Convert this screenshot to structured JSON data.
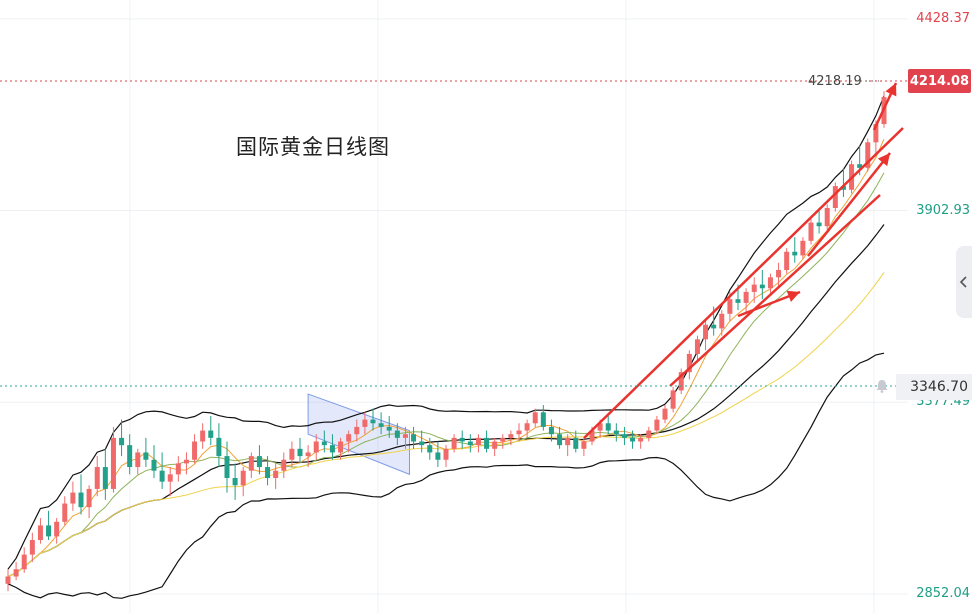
{
  "title": "国际黄金日线图",
  "price_axis": {
    "labels": [
      {
        "value": 4428.37,
        "text": "4428.37",
        "color": "#e0434e"
      },
      {
        "value": 3902.93,
        "text": "3902.93",
        "color": "#1f9e84"
      },
      {
        "value": 3377.49,
        "text": "3377.49",
        "color": "#1f9e84"
      },
      {
        "value": 2852.04,
        "text": "2852.04",
        "color": "#1f9e84"
      }
    ],
    "current_price": "4214.08",
    "reference_price": "3346.70",
    "high_label": "4218.19"
  },
  "colors": {
    "up": "#f06a6a",
    "down": "#22a08a",
    "bb": "#111111",
    "ma_short": "#f2a33a",
    "ma_mid": "#8fb35a",
    "ma_long": "#f0d24a",
    "trendline": "#e8332e",
    "channel": "#7f9be8"
  },
  "chart_data": {
    "type": "candlestick",
    "y_range": [
      2800,
      4480
    ],
    "title": "国际黄金日线图",
    "series": [
      {
        "name": "candles",
        "values": [
          [
            2880,
            2920,
            2860,
            2900
          ],
          [
            2900,
            2940,
            2890,
            2920
          ],
          [
            2920,
            2980,
            2910,
            2960
          ],
          [
            2960,
            3020,
            2940,
            3000
          ],
          [
            3000,
            3060,
            2990,
            3040
          ],
          [
            3040,
            3080,
            3000,
            3010
          ],
          [
            3010,
            3060,
            2990,
            3050
          ],
          [
            3050,
            3120,
            3040,
            3100
          ],
          [
            3100,
            3160,
            3080,
            3130
          ],
          [
            3130,
            3180,
            3070,
            3090
          ],
          [
            3090,
            3150,
            3060,
            3140
          ],
          [
            3140,
            3230,
            3120,
            3200
          ],
          [
            3200,
            3250,
            3110,
            3140
          ],
          [
            3140,
            3310,
            3130,
            3280
          ],
          [
            3280,
            3330,
            3230,
            3260
          ],
          [
            3260,
            3290,
            3180,
            3200
          ],
          [
            3200,
            3250,
            3180,
            3240
          ],
          [
            3240,
            3280,
            3200,
            3220
          ],
          [
            3220,
            3260,
            3170,
            3190
          ],
          [
            3190,
            3240,
            3140,
            3160
          ],
          [
            3160,
            3200,
            3120,
            3180
          ],
          [
            3180,
            3230,
            3160,
            3210
          ],
          [
            3210,
            3240,
            3180,
            3220
          ],
          [
            3220,
            3290,
            3210,
            3270
          ],
          [
            3270,
            3320,
            3250,
            3300
          ],
          [
            3300,
            3340,
            3260,
            3280
          ],
          [
            3280,
            3320,
            3200,
            3230
          ],
          [
            3230,
            3270,
            3130,
            3170
          ],
          [
            3170,
            3210,
            3110,
            3150
          ],
          [
            3150,
            3200,
            3120,
            3190
          ],
          [
            3190,
            3240,
            3170,
            3230
          ],
          [
            3230,
            3260,
            3180,
            3200
          ],
          [
            3200,
            3230,
            3150,
            3170
          ],
          [
            3170,
            3210,
            3140,
            3190
          ],
          [
            3190,
            3240,
            3170,
            3220
          ],
          [
            3220,
            3270,
            3200,
            3250
          ],
          [
            3250,
            3280,
            3210,
            3230
          ],
          [
            3230,
            3260,
            3200,
            3240
          ],
          [
            3240,
            3290,
            3220,
            3270
          ],
          [
            3270,
            3300,
            3240,
            3260
          ],
          [
            3260,
            3290,
            3220,
            3240
          ],
          [
            3240,
            3280,
            3220,
            3270
          ],
          [
            3270,
            3300,
            3240,
            3290
          ],
          [
            3290,
            3330,
            3270,
            3310
          ],
          [
            3310,
            3350,
            3290,
            3330
          ],
          [
            3330,
            3360,
            3300,
            3320
          ],
          [
            3320,
            3350,
            3290,
            3310
          ],
          [
            3310,
            3340,
            3280,
            3300
          ],
          [
            3300,
            3320,
            3260,
            3280
          ],
          [
            3280,
            3310,
            3250,
            3290
          ],
          [
            3290,
            3310,
            3250,
            3270
          ],
          [
            3270,
            3300,
            3240,
            3260
          ],
          [
            3260,
            3280,
            3220,
            3240
          ],
          [
            3240,
            3270,
            3200,
            3220
          ],
          [
            3220,
            3260,
            3200,
            3250
          ],
          [
            3250,
            3290,
            3240,
            3280
          ],
          [
            3280,
            3300,
            3250,
            3270
          ],
          [
            3270,
            3290,
            3240,
            3260
          ],
          [
            3260,
            3290,
            3240,
            3280
          ],
          [
            3280,
            3300,
            3240,
            3250
          ],
          [
            3250,
            3280,
            3230,
            3270
          ],
          [
            3270,
            3290,
            3250,
            3280
          ],
          [
            3280,
            3300,
            3260,
            3290
          ],
          [
            3290,
            3320,
            3270,
            3300
          ],
          [
            3300,
            3330,
            3280,
            3320
          ],
          [
            3320,
            3360,
            3310,
            3350
          ],
          [
            3350,
            3370,
            3300,
            3310
          ],
          [
            3310,
            3330,
            3270,
            3290
          ],
          [
            3290,
            3310,
            3250,
            3260
          ],
          [
            3260,
            3290,
            3230,
            3280
          ],
          [
            3280,
            3300,
            3240,
            3250
          ],
          [
            3250,
            3280,
            3230,
            3270
          ],
          [
            3270,
            3310,
            3260,
            3300
          ],
          [
            3300,
            3330,
            3280,
            3320
          ],
          [
            3320,
            3340,
            3290,
            3300
          ],
          [
            3300,
            3320,
            3270,
            3290
          ],
          [
            3290,
            3310,
            3260,
            3280
          ],
          [
            3280,
            3300,
            3250,
            3270
          ],
          [
            3270,
            3290,
            3250,
            3280
          ],
          [
            3280,
            3310,
            3270,
            3300
          ],
          [
            3300,
            3340,
            3290,
            3330
          ],
          [
            3330,
            3370,
            3320,
            3360
          ],
          [
            3360,
            3420,
            3350,
            3410
          ],
          [
            3410,
            3470,
            3400,
            3460
          ],
          [
            3460,
            3520,
            3440,
            3510
          ],
          [
            3510,
            3560,
            3490,
            3550
          ],
          [
            3550,
            3600,
            3520,
            3590
          ],
          [
            3590,
            3640,
            3560,
            3580
          ],
          [
            3580,
            3630,
            3560,
            3620
          ],
          [
            3620,
            3680,
            3600,
            3660
          ],
          [
            3660,
            3700,
            3630,
            3650
          ],
          [
            3650,
            3690,
            3620,
            3680
          ],
          [
            3680,
            3720,
            3650,
            3700
          ],
          [
            3700,
            3740,
            3660,
            3690
          ],
          [
            3690,
            3730,
            3670,
            3720
          ],
          [
            3720,
            3760,
            3690,
            3740
          ],
          [
            3740,
            3800,
            3730,
            3790
          ],
          [
            3790,
            3830,
            3760,
            3780
          ],
          [
            3780,
            3830,
            3770,
            3820
          ],
          [
            3820,
            3880,
            3810,
            3870
          ],
          [
            3870,
            3910,
            3840,
            3860
          ],
          [
            3860,
            3920,
            3850,
            3910
          ],
          [
            3910,
            3980,
            3900,
            3970
          ],
          [
            3970,
            4020,
            3940,
            3960
          ],
          [
            3960,
            4040,
            3950,
            4030
          ],
          [
            4030,
            4080,
            4000,
            4020
          ],
          [
            4020,
            4100,
            4010,
            4090
          ],
          [
            4090,
            4150,
            4060,
            4140
          ],
          [
            4140,
            4230,
            4130,
            4214
          ]
        ]
      }
    ]
  }
}
